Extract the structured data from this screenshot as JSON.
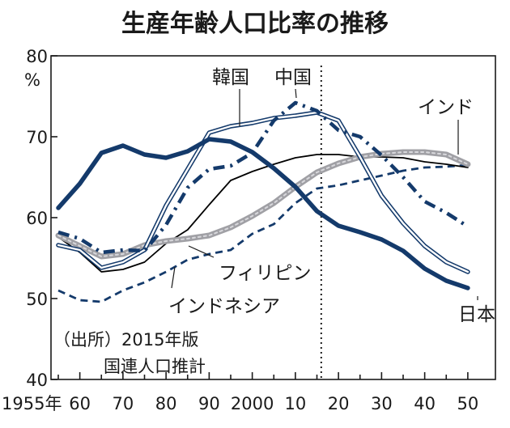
{
  "chart_data": {
    "type": "line",
    "title": "生産年齢人口比率の推移",
    "y_unit": "%",
    "source_line1": "（出所）2015年版",
    "source_line2": "国連人口推計",
    "x": [
      1955,
      1960,
      1965,
      1970,
      1975,
      1980,
      1985,
      1990,
      1995,
      2000,
      2005,
      2010,
      2015,
      2020,
      2025,
      2030,
      2035,
      2040,
      2045,
      2050
    ],
    "xlim": [
      1955,
      2050
    ],
    "ylim": [
      40,
      80
    ],
    "x_tick_labels": [
      "1955年",
      "60",
      "70",
      "80",
      "90",
      "2000",
      "10",
      "20",
      "30",
      "40",
      "50"
    ],
    "y_tick_labels": [
      "40",
      "50",
      "60",
      "70",
      "80"
    ],
    "projection_start": 2016,
    "series": [
      {
        "name": "日本",
        "label": "日本",
        "color": "#143a6b",
        "style": "thick",
        "values": [
          61.2,
          64.2,
          68.0,
          68.9,
          67.8,
          67.4,
          68.2,
          69.7,
          69.4,
          68.1,
          66.1,
          63.8,
          60.8,
          59.0,
          58.2,
          57.3,
          55.9,
          53.7,
          52.2,
          51.3
        ]
      },
      {
        "name": "中国",
        "label": "中国",
        "color": "#143a6b",
        "style": "dashdot",
        "values": [
          58.2,
          57.4,
          55.7,
          56.0,
          55.9,
          59.1,
          63.7,
          66.0,
          66.4,
          68.0,
          72.0,
          74.2,
          73.2,
          70.8,
          70.0,
          67.7,
          65.0,
          62.0,
          60.6,
          58.9
        ]
      },
      {
        "name": "韓国",
        "label": "韓国",
        "color": "#143a6b",
        "style": "double",
        "values": [
          56.6,
          56.0,
          53.8,
          54.5,
          56.0,
          61.5,
          66.0,
          70.5,
          71.3,
          71.7,
          72.3,
          72.6,
          73.0,
          72.0,
          67.5,
          62.7,
          59.3,
          56.5,
          54.5,
          53.3
        ]
      },
      {
        "name": "インド",
        "label": "インド",
        "color": "#a0a0a5",
        "style": "grey",
        "values": [
          57.8,
          56.5,
          55.2,
          55.5,
          56.6,
          57.1,
          57.4,
          57.8,
          58.8,
          60.2,
          61.8,
          63.8,
          65.6,
          66.7,
          67.5,
          67.9,
          68.1,
          68.1,
          67.8,
          66.6
        ]
      },
      {
        "name": "フィリピン",
        "label": "フィリピン",
        "color": "#000000",
        "style": "thin",
        "values": [
          57.6,
          55.7,
          53.3,
          53.6,
          54.5,
          56.8,
          58.5,
          61.6,
          64.6,
          65.7,
          66.6,
          67.4,
          67.8,
          67.8,
          67.5,
          67.5,
          67.4,
          66.9,
          66.6,
          66.2
        ]
      },
      {
        "name": "インドネシア",
        "label": "インドネシア",
        "color": "#143a6b",
        "style": "dashed",
        "values": [
          51.0,
          49.8,
          49.6,
          51.0,
          52.0,
          53.3,
          54.8,
          55.5,
          56.0,
          58.0,
          59.2,
          61.8,
          63.6,
          64.0,
          64.6,
          65.2,
          65.8,
          66.2,
          66.3,
          66.5
        ]
      }
    ]
  }
}
